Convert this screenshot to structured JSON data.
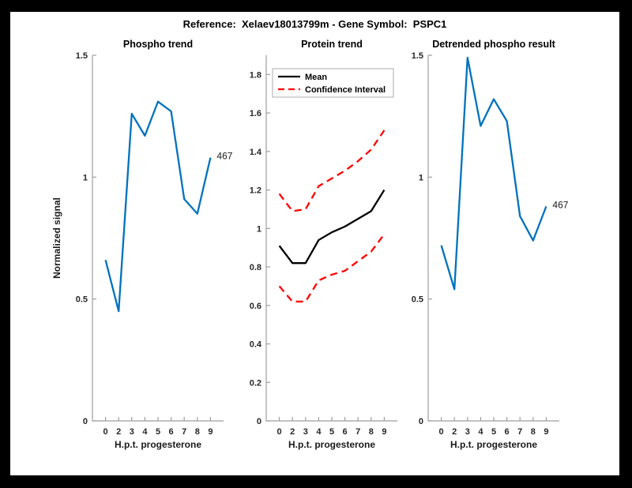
{
  "figure": {
    "title": "Reference:  Xelaev18013799m - Gene Symbol:  PSPC1"
  },
  "colors": {
    "blue": "#0072BD",
    "red": "#FF0000",
    "black": "#000000",
    "axis": "#9e9e9e",
    "tick_text": "#262626",
    "background": "#ffffff",
    "frame": "#000000",
    "legend_border": "#adadad"
  },
  "chart_data": [
    {
      "id": "phospho-trend",
      "type": "line",
      "title": "Phospho trend",
      "xlabel": "H.p.t. progesterone",
      "ylabel": "Normalized signal",
      "x": [
        0,
        2,
        3,
        4,
        5,
        6,
        7,
        8,
        9
      ],
      "x_tick_labels": [
        "0",
        "2",
        "3",
        "4",
        "5",
        "6",
        "7",
        "8",
        "9"
      ],
      "equidistant_x": true,
      "xlim": [
        0,
        10
      ],
      "ylim": [
        0,
        1.5
      ],
      "y_ticks": [
        0,
        0.5,
        1,
        1.5
      ],
      "y_tick_labels": [
        "0",
        "0.5",
        "1",
        "1.5"
      ],
      "grid": false,
      "series": [
        {
          "name": "phospho-signal",
          "color": "#0072BD",
          "style": "solid",
          "values": [
            0.66,
            0.45,
            1.26,
            1.17,
            1.31,
            1.27,
            0.91,
            0.85,
            1.08
          ]
        }
      ],
      "annotation": {
        "text": "467",
        "series": 0,
        "point_index": 8
      }
    },
    {
      "id": "protein-trend",
      "type": "line",
      "title": "Protein trend",
      "xlabel": "H.p.t. progesterone",
      "ylabel": null,
      "x": [
        0,
        2,
        3,
        4,
        5,
        6,
        7,
        8,
        9
      ],
      "x_tick_labels": [
        "0",
        "2",
        "3",
        "4",
        "5",
        "6",
        "7",
        "8",
        "9"
      ],
      "equidistant_x": true,
      "xlim": [
        0,
        10
      ],
      "ylim": [
        0,
        1.9
      ],
      "y_ticks": [
        0,
        0.2,
        0.4,
        0.6,
        0.8,
        1,
        1.2,
        1.4,
        1.6,
        1.8
      ],
      "y_tick_labels": [
        "0",
        "0.2",
        "0.4",
        "0.6",
        "0.8",
        "1",
        "1.2",
        "1.4",
        "1.6",
        "1.8"
      ],
      "grid": false,
      "legend": {
        "position": "top-left",
        "entries": [
          {
            "label": "Mean",
            "color": "#000000",
            "style": "solid"
          },
          {
            "label": "Confidence Interval",
            "color": "#FF0000",
            "style": "dashed"
          }
        ]
      },
      "series": [
        {
          "name": "mean",
          "color": "#000000",
          "style": "solid",
          "values": [
            0.91,
            0.82,
            0.82,
            0.94,
            0.98,
            1.01,
            1.05,
            1.09,
            1.2
          ]
        },
        {
          "name": "upper-confidence-interval",
          "color": "#FF0000",
          "style": "dashed",
          "values": [
            1.18,
            1.09,
            1.1,
            1.22,
            1.26,
            1.3,
            1.35,
            1.41,
            1.51
          ]
        },
        {
          "name": "lower-confidence-interval",
          "color": "#FF0000",
          "style": "dashed",
          "values": [
            0.7,
            0.62,
            0.62,
            0.73,
            0.76,
            0.78,
            0.83,
            0.88,
            0.97
          ]
        }
      ]
    },
    {
      "id": "detrended-phospho",
      "type": "line",
      "title": "Detrended phospho result",
      "xlabel": "H.p.t. progesterone",
      "ylabel": null,
      "x": [
        0,
        2,
        3,
        4,
        5,
        6,
        7,
        8,
        9
      ],
      "x_tick_labels": [
        "0",
        "2",
        "3",
        "4",
        "5",
        "6",
        "7",
        "8",
        "9"
      ],
      "equidistant_x": true,
      "xlim": [
        0,
        10
      ],
      "ylim": [
        0,
        1.5
      ],
      "y_ticks": [
        0,
        0.5,
        1,
        1.5
      ],
      "y_tick_labels": [
        "0",
        "0.5",
        "1",
        "1.5"
      ],
      "grid": false,
      "series": [
        {
          "name": "detrended-phospho-signal",
          "color": "#0072BD",
          "style": "solid",
          "values": [
            0.72,
            0.54,
            1.49,
            1.21,
            1.32,
            1.23,
            0.84,
            0.74,
            0.88
          ]
        }
      ],
      "annotation": {
        "text": "467",
        "series": 0,
        "point_index": 8
      }
    }
  ]
}
